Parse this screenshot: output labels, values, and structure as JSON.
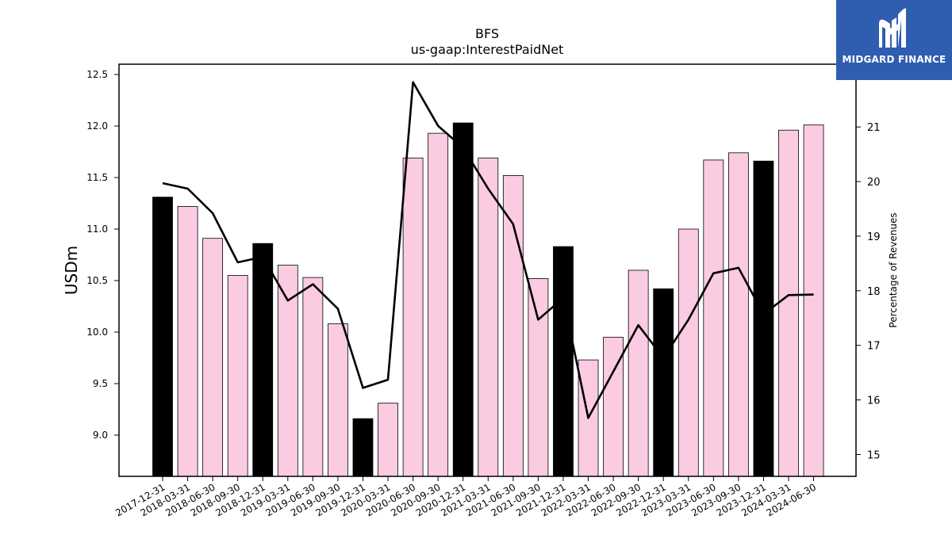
{
  "brand": {
    "name": "MIDGARD FINANCE",
    "color": "#2f5db0"
  },
  "colors": {
    "quarter_bar": "#fbcbe2",
    "year_end_bar": "#000000",
    "line": "#000000"
  },
  "chart_data": {
    "type": "bar",
    "title": "BFS",
    "subtitle": "us-gaap:InterestPaidNet",
    "ylabel": "USDm",
    "y2label": "Percentage of Revenues",
    "ylim": [
      8.6,
      12.6
    ],
    "y2lim": [
      14.6,
      22.15
    ],
    "yticks": [
      "9.0",
      "9.5",
      "10.0",
      "10.5",
      "11.0",
      "11.5",
      "12.0",
      "12.5"
    ],
    "y2ticks": [
      "15",
      "16",
      "17",
      "18",
      "19",
      "20",
      "21"
    ],
    "categories": [
      "2017-12-31",
      "2018-03-31",
      "2018-06-30",
      "2018-09-30",
      "2018-12-31",
      "2019-03-31",
      "2019-06-30",
      "2019-09-30",
      "2019-12-31",
      "2020-03-31",
      "2020-06-30",
      "2020-09-30",
      "2020-12-31",
      "2021-03-31",
      "2021-06-30",
      "2021-09-30",
      "2021-12-31",
      "2022-03-31",
      "2022-06-30",
      "2022-09-30",
      "2022-12-31",
      "2023-03-31",
      "2023-06-30",
      "2023-09-30",
      "2023-12-31",
      "2024-03-31",
      "2024-06-30"
    ],
    "series": [
      {
        "type": "bar",
        "axis": "left",
        "values": [
          11.31,
          11.22,
          10.91,
          10.55,
          10.86,
          10.65,
          10.53,
          10.08,
          9.16,
          9.31,
          11.69,
          11.93,
          12.03,
          11.69,
          11.52,
          10.52,
          10.83,
          9.73,
          9.95,
          10.6,
          10.42,
          11.0,
          11.67,
          11.74,
          11.66,
          11.96,
          12.01
        ],
        "year_end": [
          true,
          false,
          false,
          false,
          true,
          false,
          false,
          false,
          true,
          false,
          false,
          false,
          true,
          false,
          false,
          false,
          true,
          false,
          false,
          false,
          true,
          false,
          false,
          false,
          true,
          false,
          false
        ]
      },
      {
        "type": "line",
        "axis": "right",
        "values": [
          19.97,
          19.87,
          19.42,
          18.52,
          18.62,
          17.82,
          18.12,
          17.67,
          16.22,
          16.37,
          21.82,
          21.02,
          20.62,
          19.87,
          19.22,
          17.47,
          17.87,
          15.67,
          16.52,
          17.37,
          16.77,
          17.47,
          18.32,
          18.42,
          17.57,
          17.92,
          17.93
        ]
      }
    ]
  }
}
